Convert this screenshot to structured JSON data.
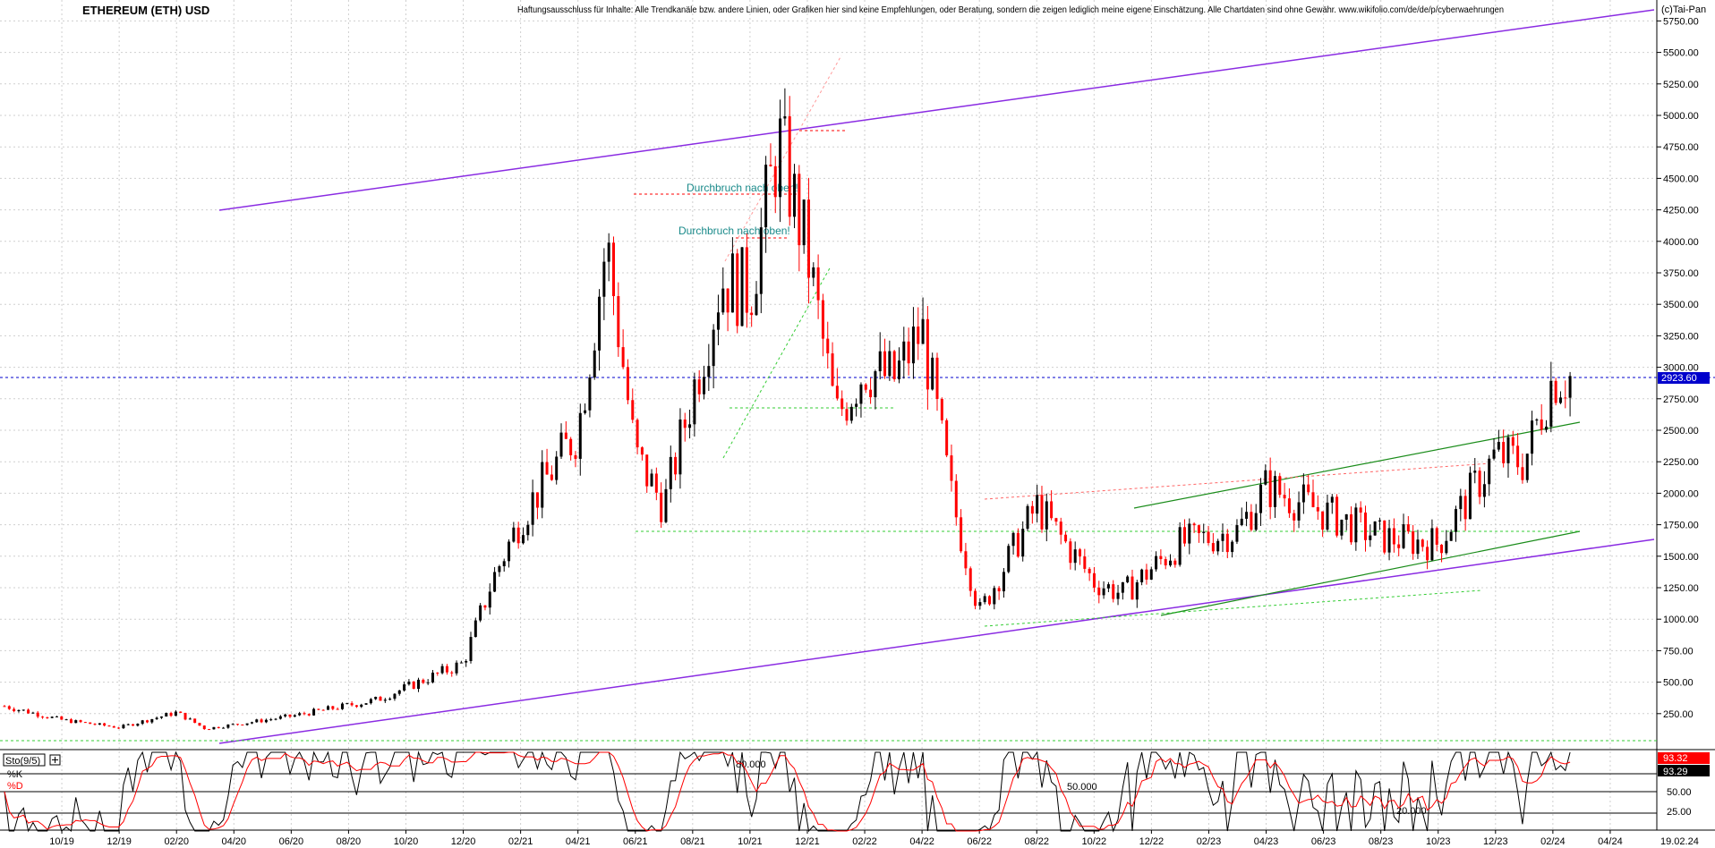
{
  "header": {
    "title": "ETHEREUM (ETH) USD",
    "disclaimer": "Haftungsausschluss für Inhalte: Alle Trendkanäle bzw. andere Linien, oder Grafiken hier sind keine Empfehlungen, oder Beratung, sondern die zeigen lediglich meine eigene Einschätzung. Alle Chartdaten sind ohne Gewähr.  www.wikifolio.com/de/de/p/cyberwaehrungen",
    "copyright": "(c)Tai-Pan"
  },
  "colors": {
    "up": "#000000",
    "down": "#ff0000",
    "channel": "#8a2be2",
    "trend_green": "#1a8c1a",
    "dashed_green": "#33cc33",
    "dashed_red": "#ff6666",
    "price_line": "#0000cc",
    "annotation": "#1a8a8a"
  },
  "icons": {
    "sto_toggle": "plus-box-icon"
  },
  "chart_data": [
    {
      "type": "line",
      "subtype": "candlestick",
      "title": "ETHEREUM (ETH) USD",
      "x_tick_labels": [
        "10/19",
        "12/19",
        "02/20",
        "04/20",
        "06/20",
        "08/20",
        "10/20",
        "12/20",
        "02/21",
        "04/21",
        "06/21",
        "08/21",
        "10/21",
        "12/21",
        "02/22",
        "04/22",
        "06/22",
        "08/22",
        "10/22",
        "12/22",
        "02/23",
        "04/23",
        "06/23",
        "08/23",
        "10/23",
        "12/23",
        "02/24",
        "04/24",
        "19.02.24"
      ],
      "y_tick_labels": [
        "250.00",
        "500.00",
        "750.00",
        "1000.00",
        "1250.00",
        "1500.00",
        "1750.00",
        "2000.00",
        "2250.00",
        "2500.00",
        "2750.00",
        "3000.00",
        "3250.00",
        "3500.00",
        "3750.00",
        "4000.00",
        "4250.00",
        "4500.00",
        "4750.00",
        "5000.00",
        "5250.00",
        "5500.00",
        "5750.00"
      ],
      "ylim": [
        0,
        5850
      ],
      "last_price": "2923.60",
      "series": [
        {
          "x": [
            "2019-08",
            "2019-10",
            "2019-12",
            "2020-02",
            "2020-03",
            "2020-06",
            "2020-09",
            "2020-12",
            "2021-01",
            "2021-02",
            "2021-04",
            "2021-05",
            "2021-06",
            "2021-07",
            "2021-09",
            "2021-10",
            "2021-11",
            "2021-12",
            "2022-01",
            "2022-02",
            "2022-03",
            "2022-04",
            "2022-05",
            "2022-06",
            "2022-08",
            "2022-10",
            "2022-11",
            "2023-01",
            "2023-03",
            "2023-04",
            "2023-06",
            "2023-08",
            "2023-10",
            "2023-12",
            "2024-01",
            "2024-02"
          ],
          "values": [
            310,
            200,
            140,
            260,
            130,
            230,
            360,
            650,
            1300,
            1800,
            2500,
            4000,
            2300,
            1900,
            3700,
            3600,
            4800,
            3900,
            2600,
            3000,
            2900,
            3300,
            2000,
            1050,
            1900,
            1300,
            1200,
            1600,
            1700,
            2050,
            1850,
            1650,
            1600,
            2300,
            2250,
            2923
          ]
        }
      ],
      "annotations": [
        "Durchbruch nach oben!",
        "Durchbruch nach oben!"
      ]
    },
    {
      "type": "line",
      "title": "Sto(9/5)",
      "series_labels": [
        "%K",
        "%D"
      ],
      "y_tick_labels": [
        "25.00",
        "50.00"
      ],
      "ylim": [
        0,
        100
      ],
      "level_labels": [
        "80.000",
        "50.000",
        "20.000"
      ],
      "last_k": "93.32",
      "last_d": "93.29"
    }
  ]
}
